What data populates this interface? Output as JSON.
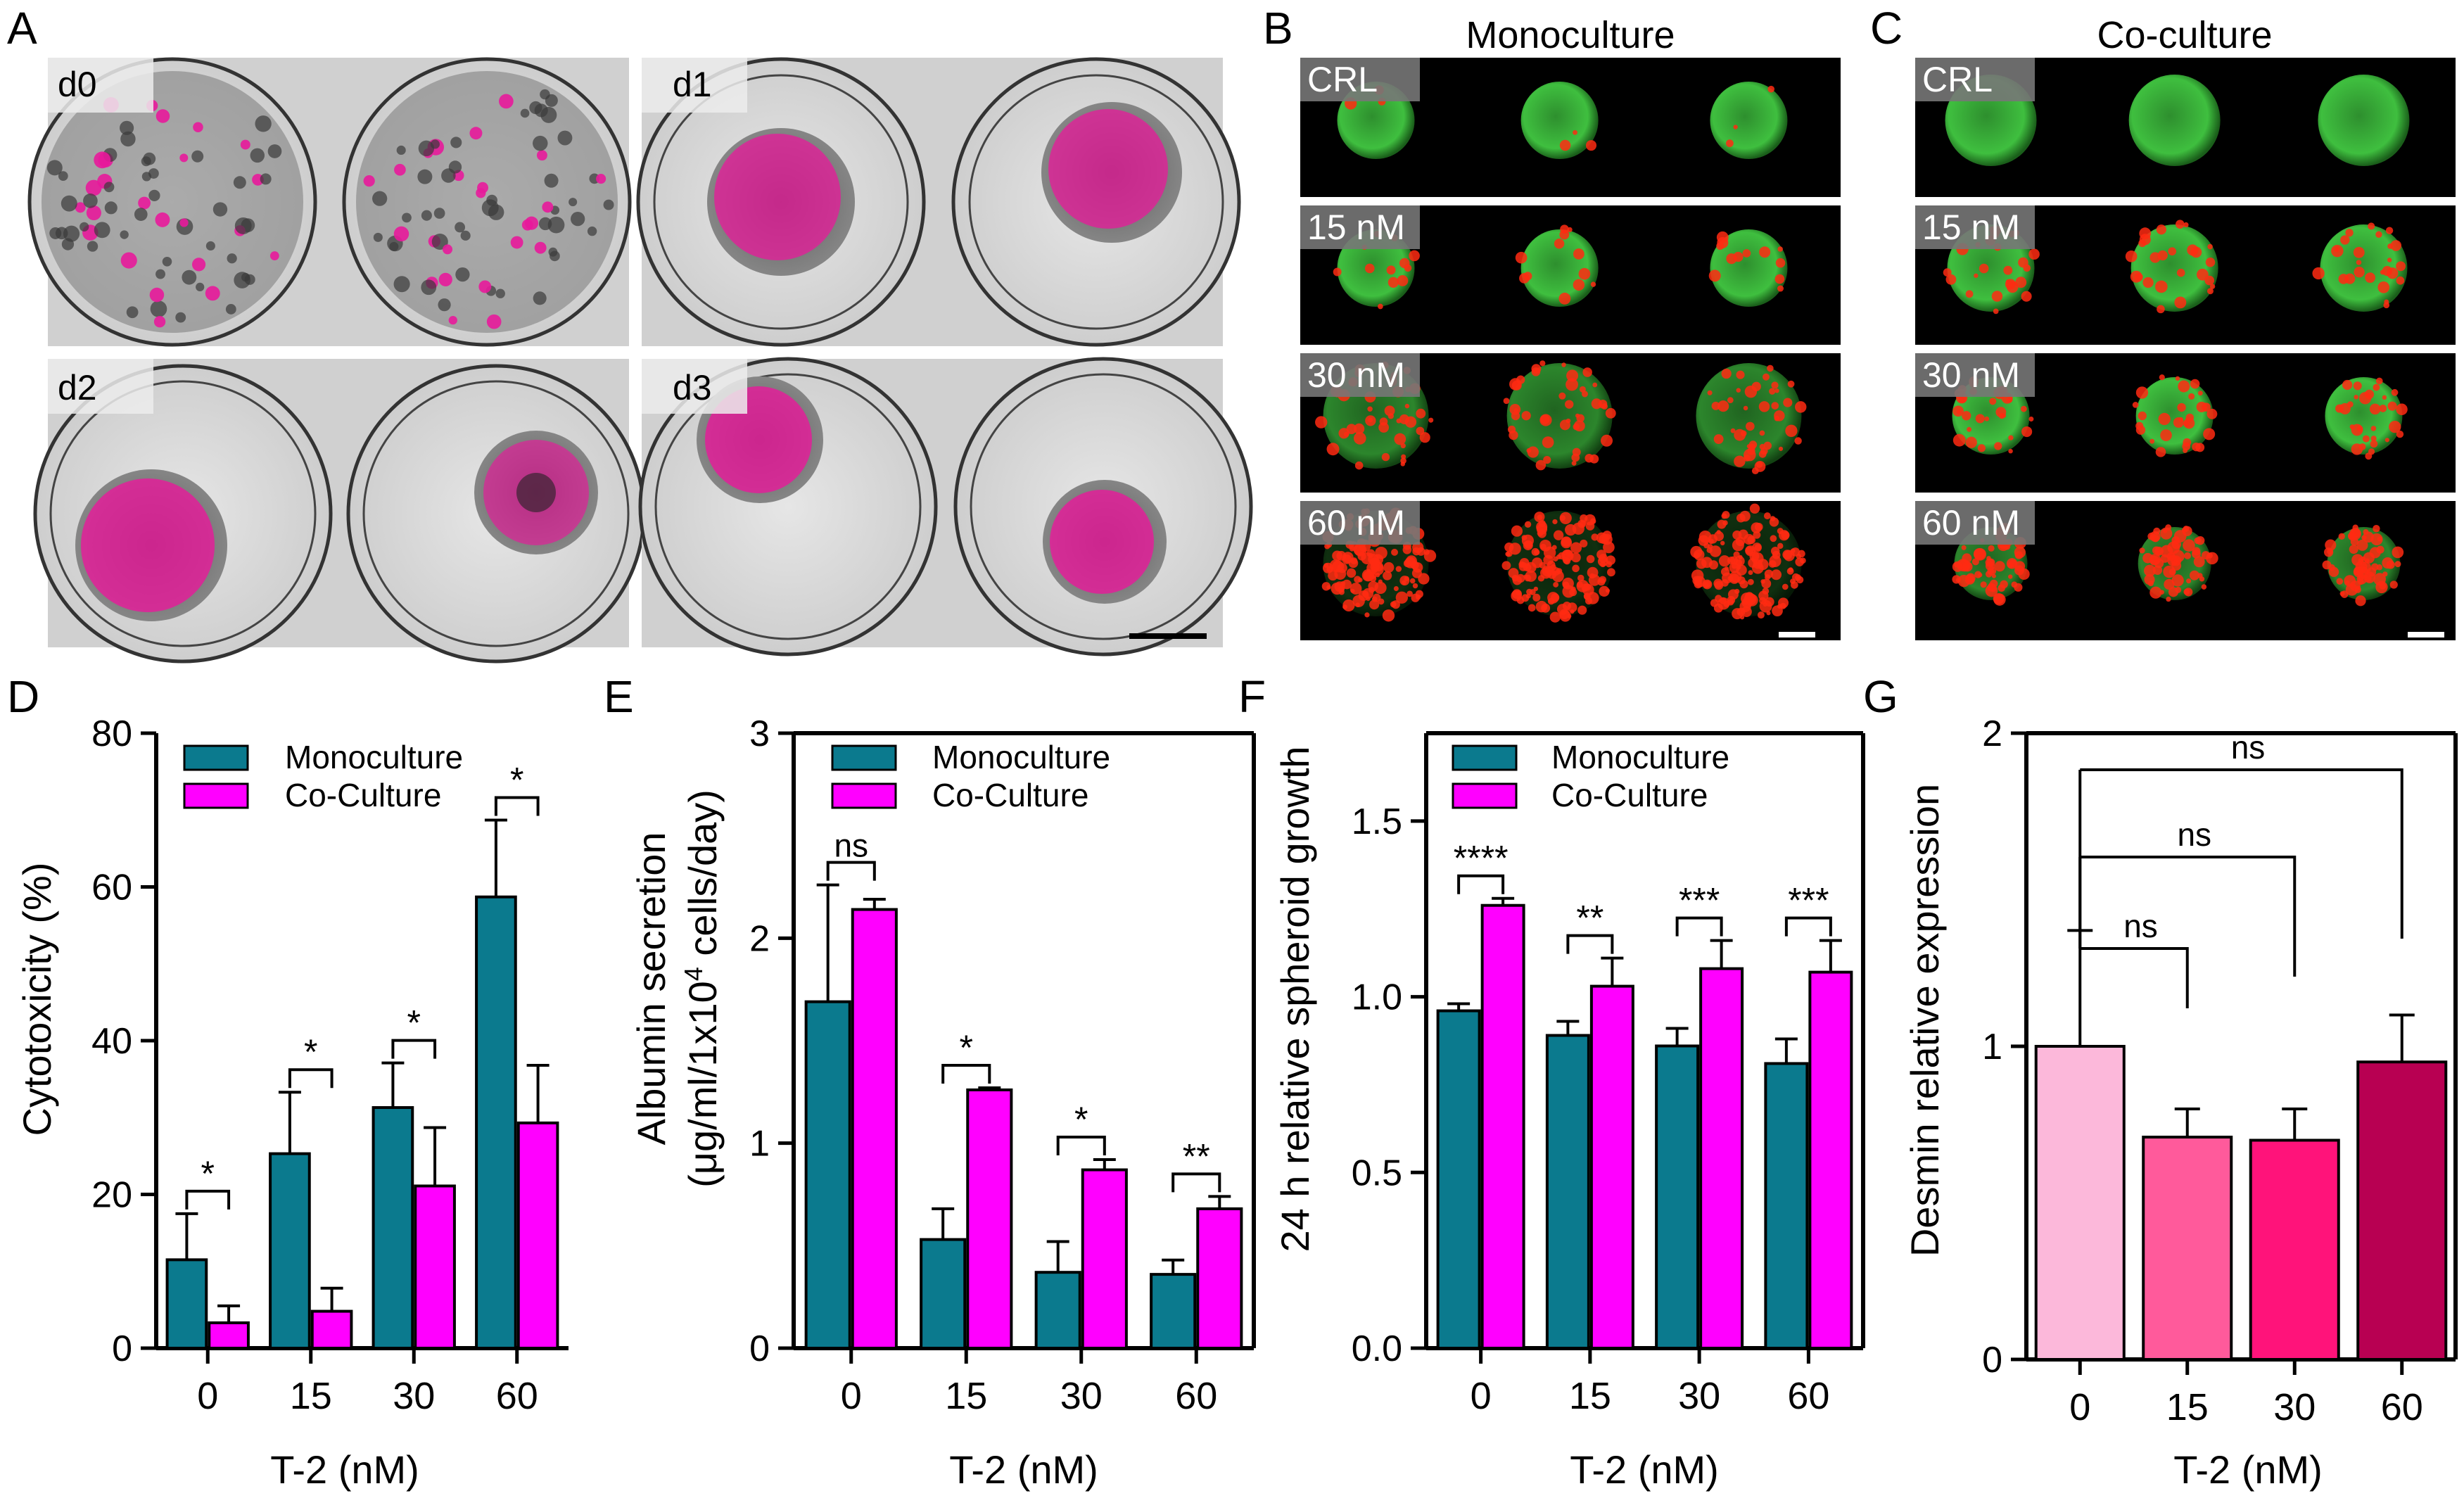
{
  "colors": {
    "mono": "#0b7a8e",
    "co": "#ff00ff",
    "green": "#3fbf3f",
    "red": "#ff2a12",
    "magenta": "#e8199b",
    "g_colors": [
      "#fcb8da",
      "#ff5a9b",
      "#ff137a",
      "#b80052"
    ]
  },
  "panels": {
    "A": {
      "letter": "A",
      "days": [
        "d0",
        "d1",
        "d2",
        "d3"
      ]
    },
    "B": {
      "letter": "B",
      "title": "Monoculture",
      "rows": [
        "CRL",
        "15 nM",
        "30 nM",
        "60 nM"
      ]
    },
    "C": {
      "letter": "C",
      "title": "Co-culture",
      "rows": [
        "CRL",
        "15 nM",
        "30 nM",
        "60 nM"
      ]
    },
    "D": {
      "letter": "D"
    },
    "E": {
      "letter": "E"
    },
    "F": {
      "letter": "F"
    },
    "G": {
      "letter": "G"
    }
  },
  "chart_data": [
    {
      "id": "D",
      "type": "bar",
      "categories": [
        "0",
        "15",
        "30",
        "60"
      ],
      "series": [
        {
          "name": "Monoculture",
          "values": [
            11.5,
            25.3,
            31.3,
            58.7
          ],
          "errors": [
            6.0,
            8.0,
            5.8,
            10.0
          ]
        },
        {
          "name": "Co-Culture",
          "values": [
            3.3,
            4.8,
            21.1,
            29.3
          ],
          "errors": [
            2.2,
            3.0,
            7.6,
            7.5
          ]
        }
      ],
      "xlabel": "T-2 (nM)",
      "ylabel": "Cytotoxicity (%)",
      "ylim": [
        0,
        80
      ],
      "yticks": [
        "0",
        "20",
        "40",
        "60",
        "80"
      ],
      "significance": [
        "*",
        "*",
        "*",
        "*"
      ],
      "grid": false,
      "legend": "top-left"
    },
    {
      "id": "E",
      "type": "bar",
      "categories": [
        "0",
        "15",
        "30",
        "60"
      ],
      "series": [
        {
          "name": "Monoculture",
          "values": [
            1.69,
            0.53,
            0.37,
            0.36
          ],
          "errors": [
            0.57,
            0.15,
            0.15,
            0.07
          ]
        },
        {
          "name": "Co-Culture",
          "values": [
            2.14,
            1.26,
            0.87,
            0.68
          ],
          "errors": [
            0.05,
            0.01,
            0.05,
            0.06
          ]
        }
      ],
      "xlabel": "T-2 (nM)",
      "ylabel_line1": "Albumin secretion",
      "ylabel_line2_a": "(μg/ml/1x10",
      "ylabel_line2_sup": "4",
      "ylabel_line2_b": " cells/day)",
      "ylim": [
        0,
        3
      ],
      "yticks": [
        "0",
        "1",
        "2",
        "3"
      ],
      "significance": [
        "ns",
        "*",
        "*",
        "**"
      ],
      "grid": false,
      "legend": "top-left"
    },
    {
      "id": "F",
      "type": "bar",
      "categories": [
        "0",
        "15",
        "30",
        "60"
      ],
      "series": [
        {
          "name": "Monoculture",
          "values": [
            0.96,
            0.89,
            0.86,
            0.81
          ],
          "errors": [
            0.02,
            0.04,
            0.05,
            0.07
          ]
        },
        {
          "name": "Co-Culture",
          "values": [
            1.26,
            1.03,
            1.08,
            1.07
          ],
          "errors": [
            0.02,
            0.08,
            0.08,
            0.09
          ]
        }
      ],
      "xlabel": "T-2 (nM)",
      "ylabel": "24 h relative spheroid growth",
      "ylim": [
        0,
        1.75
      ],
      "yticks": [
        "0.0",
        "0.5",
        "1.0",
        "1.5"
      ],
      "significance": [
        "****",
        "**",
        "***",
        "***"
      ],
      "grid": false,
      "legend": "top-left"
    },
    {
      "id": "G",
      "type": "bar",
      "categories": [
        "0",
        "15",
        "30",
        "60"
      ],
      "values": [
        1.0,
        0.71,
        0.7,
        0.95
      ],
      "errors": [
        0.37,
        0.09,
        0.1,
        0.15
      ],
      "xlabel": "T-2 (nM)",
      "ylabel": "Desmin relative expression",
      "ylim": [
        0,
        2
      ],
      "yticks": [
        "0",
        "1",
        "2"
      ],
      "comparisons": [
        "ns",
        "ns",
        "ns"
      ],
      "grid": false
    }
  ]
}
